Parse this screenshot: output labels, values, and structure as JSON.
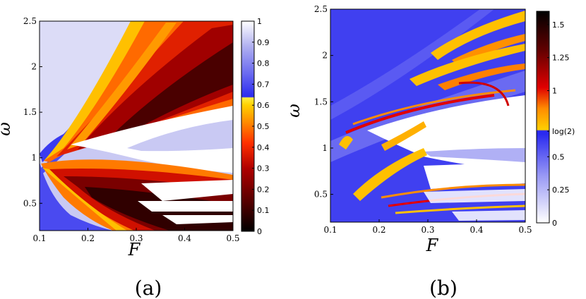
{
  "chart_data": [
    {
      "type": "heatmap",
      "panel_label": "(a)",
      "xlabel": "F",
      "ylabel": "ω",
      "xlim": [
        0.1,
        0.5
      ],
      "ylim": [
        0.2,
        2.5
      ],
      "xticks": [
        "0.1",
        "0.2",
        "0.3",
        "0.4",
        "0.5"
      ],
      "yticks": [
        "0.5",
        "1",
        "1.5",
        "2",
        "2.5"
      ],
      "colorbar": {
        "range": [
          0,
          1
        ],
        "ticks": [
          "0",
          "0.1",
          "0.2",
          "0.3",
          "0.4",
          "0.5",
          "0.6",
          "0.7",
          "0.8",
          "0.9",
          "1"
        ],
        "colormap": [
          "#000000",
          "#5a0000",
          "#b00000",
          "#ff3000",
          "#ff8c00",
          "#ffd000",
          "#ffee40",
          "#2a2af0",
          "#6a6af0",
          "#b0b0f0",
          "#ffffff"
        ]
      }
    },
    {
      "type": "heatmap",
      "panel_label": "(b)",
      "xlabel": "F",
      "ylabel": "ω",
      "xlim": [
        0.1,
        0.5
      ],
      "ylim": [
        0.2,
        2.5
      ],
      "xticks": [
        "0.1",
        "0.2",
        "0.3",
        "0.4",
        "0.5"
      ],
      "yticks": [
        "0.5",
        "1",
        "1.5",
        "2",
        "2.5"
      ],
      "colorbar": {
        "range": [
          0,
          1.6
        ],
        "ticks": [
          "0",
          "0.25",
          "0.5",
          "log(2)",
          "1",
          "1.25",
          "1.5"
        ],
        "tick_values": [
          0,
          0.25,
          0.5,
          0.693,
          1,
          1.25,
          1.5
        ],
        "colormap": [
          "#ffffff",
          "#9a9af5",
          "#2a2af0",
          "#ffd000",
          "#ff8c00",
          "#e00000",
          "#600000",
          "#000000"
        ]
      }
    }
  ]
}
